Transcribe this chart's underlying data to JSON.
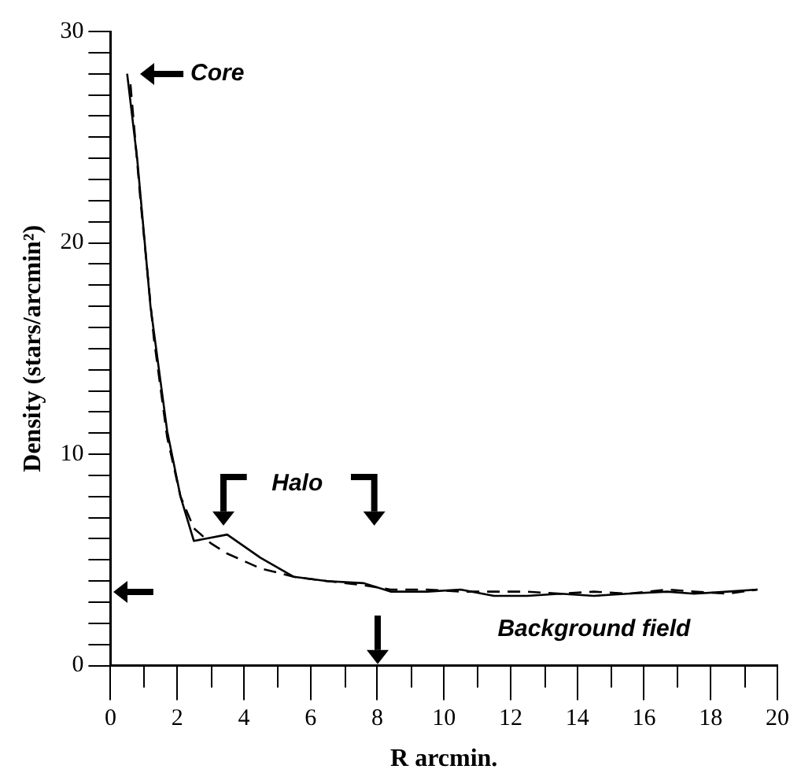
{
  "chart_data": {
    "type": "line",
    "xlabel": "R arcmin.",
    "ylabel": "Density (stars/arcmin²)",
    "xlim": [
      0,
      20
    ],
    "ylim": [
      0,
      30
    ],
    "xticks": [
      0,
      {
        "value": 1,
        "label": null
      },
      2,
      {
        "value": 3,
        "label": null
      },
      4,
      {
        "value": 5,
        "label": null
      },
      6,
      {
        "value": 7,
        "label": null
      },
      8,
      {
        "value": 9,
        "label": null
      },
      10,
      {
        "value": 11,
        "label": null
      },
      12,
      {
        "value": 13,
        "label": null
      },
      14,
      {
        "value": 15,
        "label": null
      },
      16,
      {
        "value": 17,
        "label": null
      },
      18,
      {
        "value": 19,
        "label": null
      },
      20
    ],
    "yticks": [
      0,
      {
        "value": 1,
        "label": null
      },
      {
        "value": 2,
        "label": null
      },
      {
        "value": 3,
        "label": null
      },
      {
        "value": 4,
        "label": null
      },
      {
        "value": 5,
        "label": null
      },
      {
        "value": 6,
        "label": null
      },
      {
        "value": 7,
        "label": null
      },
      {
        "value": 8,
        "label": null
      },
      {
        "value": 9,
        "label": null
      },
      10,
      {
        "value": 11,
        "label": null
      },
      {
        "value": 12,
        "label": null
      },
      {
        "value": 13,
        "label": null
      },
      {
        "value": 14,
        "label": null
      },
      {
        "value": 15,
        "label": null
      },
      {
        "value": 16,
        "label": null
      },
      {
        "value": 17,
        "label": null
      },
      {
        "value": 18,
        "label": null
      },
      {
        "value": 19,
        "label": null
      },
      20,
      {
        "value": 21,
        "label": null
      },
      {
        "value": 22,
        "label": null
      },
      {
        "value": 23,
        "label": null
      },
      {
        "value": 24,
        "label": null
      },
      {
        "value": 25,
        "label": null
      },
      {
        "value": 26,
        "label": null
      },
      {
        "value": 27,
        "label": null
      },
      {
        "value": 28,
        "label": null
      },
      {
        "value": 29,
        "label": null
      },
      30
    ],
    "grid": false,
    "legend": false,
    "marker": "none",
    "series": [
      {
        "color": "#000000",
        "line_style": "solid",
        "x": [
          0.5,
          0.8,
          1.2,
          1.7,
          2.1,
          2.5,
          3.5,
          4.5,
          5.5,
          6.5,
          7.6,
          8.4,
          9.5,
          10.5,
          11.5,
          12.5,
          13.5,
          14.5,
          15.5,
          16.7,
          17.5,
          18.5,
          19.4
        ],
        "values": [
          28,
          24,
          17,
          11.1,
          8,
          5.9,
          6.2,
          5.1,
          4.2,
          4.0,
          3.9,
          3.5,
          3.5,
          3.6,
          3.3,
          3.3,
          3.4,
          3.3,
          3.4,
          3.5,
          3.4,
          3.5,
          3.6
        ]
      },
      {
        "color": "#000000",
        "line_style": "dashed",
        "x": [
          0.6,
          0.9,
          1.3,
          1.7,
          2.1,
          2.5,
          3.0,
          3.5,
          4.5,
          5.5,
          6.5,
          7.6,
          8.4,
          9.5,
          10.5,
          11.5,
          12.5,
          13.5,
          14.5,
          15.5,
          16.7,
          17.5,
          18.5,
          19.4
        ],
        "values": [
          27.5,
          22,
          15.5,
          10.8,
          8,
          6.5,
          5.8,
          5.3,
          4.6,
          4.2,
          4.0,
          3.8,
          3.6,
          3.6,
          3.5,
          3.5,
          3.5,
          3.4,
          3.5,
          3.4,
          3.6,
          3.5,
          3.4,
          3.6
        ]
      }
    ],
    "annotations": [
      {
        "text": "Core",
        "x": 0.5,
        "y": 28
      },
      "Halo",
      "Background field"
    ]
  }
}
